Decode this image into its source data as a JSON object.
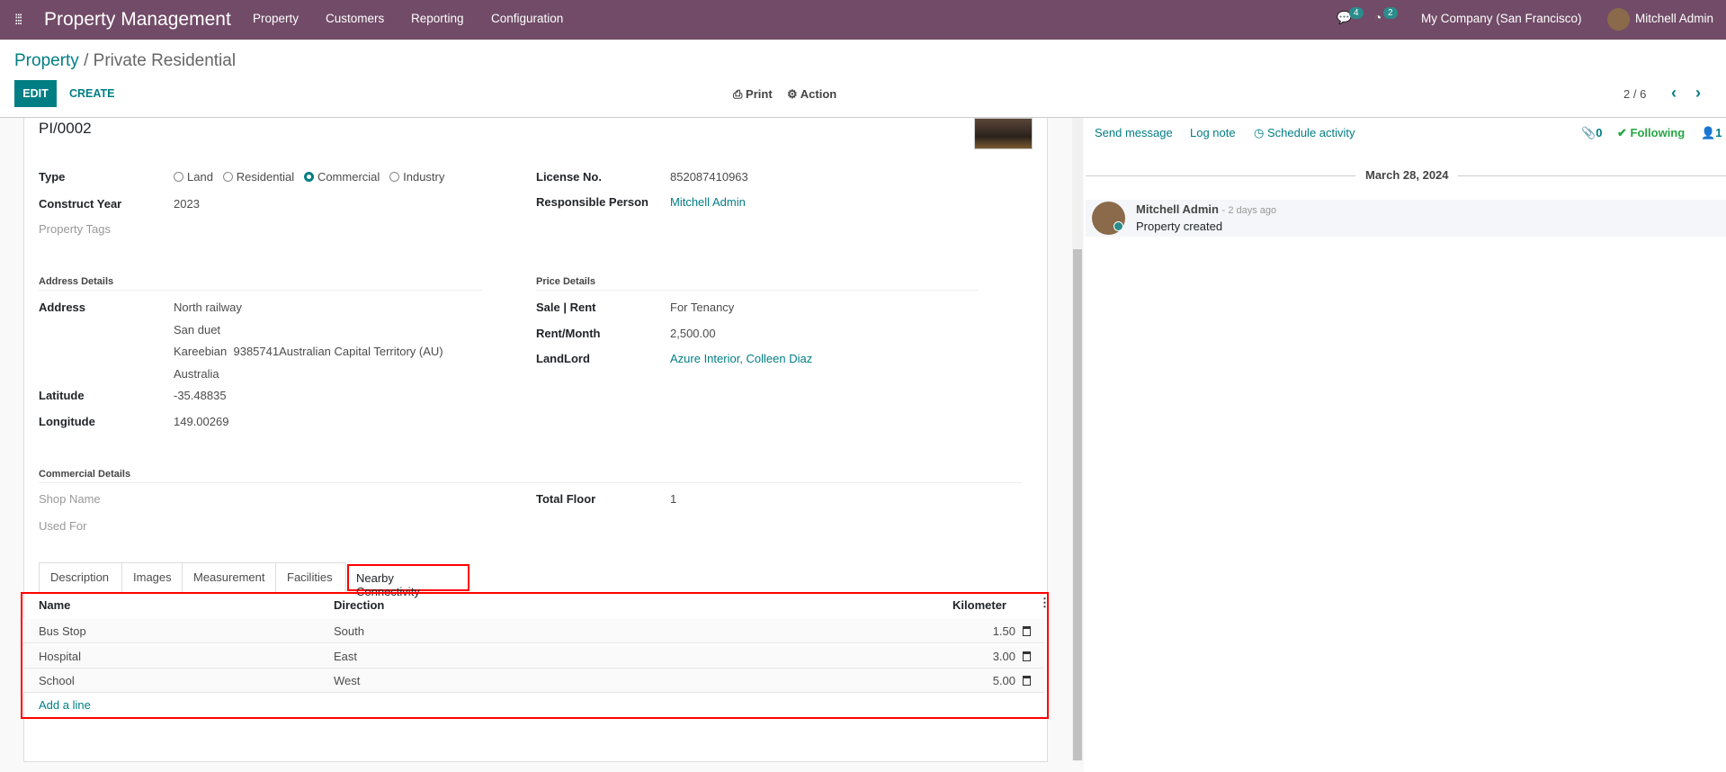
{
  "navbar": {
    "app_title": "Property Management",
    "menu": [
      "Property",
      "Customers",
      "Reporting",
      "Configuration"
    ],
    "messages_count": "4",
    "activities_count": "2",
    "company": "My Company (San Francisco)",
    "user": "Mitchell Admin"
  },
  "breadcrumb": {
    "parent": "Property",
    "current": "Private Residential"
  },
  "toolbar": {
    "edit": "EDIT",
    "create": "CREATE",
    "print": "Print",
    "action": "Action",
    "pager": "2 / 6"
  },
  "form": {
    "reference": "PI/0002",
    "type": {
      "label": "Type",
      "options": [
        "Land",
        "Residential",
        "Commercial",
        "Industry"
      ],
      "selected": "Commercial"
    },
    "construct_year": {
      "label": "Construct Year",
      "value": "2023"
    },
    "property_tags": {
      "label": "Property Tags"
    },
    "license": {
      "label": "License No.",
      "value": "852087410963"
    },
    "responsible": {
      "label": "Responsible Person",
      "value": "Mitchell Admin"
    },
    "address_section": "Address Details",
    "address": {
      "label": "Address",
      "lines": [
        "North railway",
        "San duet",
        "Kareebian  9385741Australian Capital Territory (AU)",
        "Australia"
      ]
    },
    "latitude": {
      "label": "Latitude",
      "value": "-35.48835"
    },
    "longitude": {
      "label": "Longitude",
      "value": "149.00269"
    },
    "price_section": "Price Details",
    "sale_rent": {
      "label": "Sale | Rent",
      "value": "For Tenancy"
    },
    "rent_month": {
      "label": "Rent/Month",
      "value": "2,500.00"
    },
    "landlord": {
      "label": "LandLord",
      "value": "Azure Interior, Colleen Diaz"
    },
    "commercial_section": "Commercial Details",
    "shop_name": {
      "label": "Shop Name"
    },
    "used_for": {
      "label": "Used For"
    },
    "total_floor": {
      "label": "Total Floor",
      "value": "1"
    },
    "tabs": [
      "Description",
      "Images",
      "Measurement",
      "Facilities",
      "Nearby Connectivity"
    ],
    "active_tab": "Nearby Connectivity",
    "table": {
      "columns": [
        "Name",
        "Direction",
        "Kilometer"
      ],
      "rows": [
        [
          "Bus Stop",
          "South",
          "1.50"
        ],
        [
          "Hospital",
          "East",
          "3.00"
        ],
        [
          "School",
          "West",
          "5.00"
        ]
      ],
      "add_line": "Add a line"
    }
  },
  "chatter": {
    "send_message": "Send message",
    "log_note": "Log note",
    "schedule_activity": "Schedule activity",
    "attachments": "0",
    "following": "Following",
    "followers": "1",
    "date": "March 28, 2024",
    "message": {
      "author": "Mitchell Admin",
      "time": "- 2 days ago",
      "body": "Property created"
    }
  },
  "colors": {
    "navbar": "#714b67",
    "accent": "#017e84",
    "highlight": "#ff0000"
  }
}
